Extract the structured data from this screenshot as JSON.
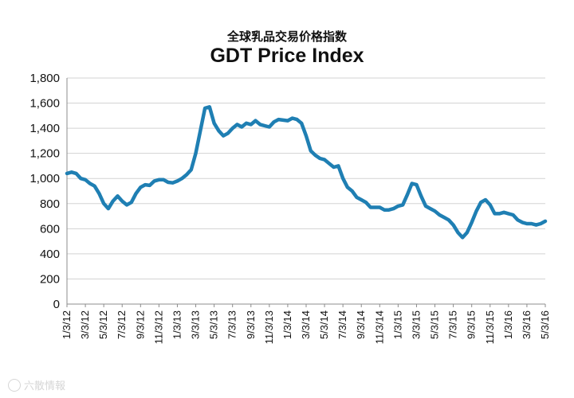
{
  "chart_data": {
    "type": "line",
    "subtitle": "全球乳品交易价格指数",
    "title": "GDT Price Index",
    "xlabel": "",
    "ylabel": "",
    "ylim": [
      0,
      1800
    ],
    "yticks": [
      0,
      200,
      400,
      600,
      800,
      1000,
      1200,
      1400,
      1600,
      1800
    ],
    "ytick_labels": [
      "0",
      "200",
      "400",
      "600",
      "800",
      "1,000",
      "1,200",
      "1,400",
      "1,600",
      "1,800"
    ],
    "xlim": [
      0,
      52
    ],
    "xticks": [
      {
        "x": 0,
        "label": "1/3/12"
      },
      {
        "x": 2,
        "label": "3/3/12"
      },
      {
        "x": 4,
        "label": "5/3/12"
      },
      {
        "x": 6,
        "label": "7/3/12"
      },
      {
        "x": 8,
        "label": "9/3/12"
      },
      {
        "x": 10,
        "label": "11/3/12"
      },
      {
        "x": 12,
        "label": "1/3/13"
      },
      {
        "x": 14,
        "label": "3/3/13"
      },
      {
        "x": 16,
        "label": "5/3/13"
      },
      {
        "x": 18,
        "label": "7/3/13"
      },
      {
        "x": 20,
        "label": "9/3/13"
      },
      {
        "x": 22,
        "label": "11/3/13"
      },
      {
        "x": 24,
        "label": "1/3/14"
      },
      {
        "x": 26,
        "label": "3/3/14"
      },
      {
        "x": 28,
        "label": "5/3/14"
      },
      {
        "x": 30,
        "label": "7/3/14"
      },
      {
        "x": 32,
        "label": "9/3/14"
      },
      {
        "x": 34,
        "label": "11/3/14"
      },
      {
        "x": 36,
        "label": "1/3/15"
      },
      {
        "x": 38,
        "label": "3/3/15"
      },
      {
        "x": 40,
        "label": "5/3/15"
      },
      {
        "x": 42,
        "label": "7/3/15"
      },
      {
        "x": 44,
        "label": "9/3/15"
      },
      {
        "x": 46,
        "label": "11/3/15"
      },
      {
        "x": 48,
        "label": "1/3/16"
      },
      {
        "x": 50,
        "label": "3/3/16"
      },
      {
        "x": 52,
        "label": "5/3/16"
      }
    ],
    "grid": true,
    "line_color": "#1f7fb3",
    "series": [
      {
        "name": "GDT Price Index",
        "x": [
          0,
          0.5,
          1,
          1.5,
          2,
          2.5,
          3,
          3.5,
          4,
          4.5,
          5,
          5.5,
          6,
          6.5,
          7,
          7.5,
          8,
          8.5,
          9,
          9.5,
          10,
          10.5,
          11,
          11.5,
          12,
          12.5,
          13,
          13.5,
          14,
          14.5,
          15,
          15.5,
          16,
          16.5,
          17,
          17.5,
          18,
          18.5,
          19,
          19.5,
          20,
          20.5,
          21,
          21.5,
          22,
          22.5,
          23,
          23.5,
          24,
          24.5,
          25,
          25.5,
          26,
          26.5,
          27,
          27.5,
          28,
          28.5,
          29,
          29.5,
          30,
          30.5,
          31,
          31.5,
          32,
          32.5,
          33,
          33.5,
          34,
          34.5,
          35,
          35.5,
          36,
          36.5,
          37,
          37.5,
          38,
          38.5,
          39,
          39.5,
          40,
          40.5,
          41,
          41.5,
          42,
          42.5,
          43,
          43.5,
          44,
          44.5,
          45,
          45.5,
          46,
          46.5,
          47,
          47.5,
          48,
          48.5,
          49,
          49.5,
          50,
          50.5,
          51,
          51.5,
          52
        ],
        "values": [
          1040,
          1050,
          1040,
          1000,
          990,
          960,
          940,
          880,
          800,
          760,
          820,
          860,
          820,
          790,
          810,
          880,
          930,
          950,
          945,
          980,
          990,
          990,
          970,
          965,
          980,
          1000,
          1030,
          1070,
          1200,
          1380,
          1560,
          1570,
          1440,
          1380,
          1340,
          1360,
          1400,
          1430,
          1410,
          1440,
          1430,
          1460,
          1430,
          1420,
          1410,
          1450,
          1470,
          1465,
          1460,
          1480,
          1470,
          1440,
          1340,
          1220,
          1185,
          1160,
          1150,
          1120,
          1090,
          1100,
          1000,
          930,
          900,
          850,
          830,
          810,
          770,
          770,
          770,
          750,
          750,
          760,
          780,
          790,
          870,
          960,
          950,
          860,
          780,
          760,
          740,
          710,
          690,
          670,
          630,
          570,
          530,
          570,
          650,
          740,
          810,
          830,
          790,
          720,
          720,
          730,
          720,
          710,
          670,
          650,
          640,
          640,
          630,
          640,
          660
        ]
      }
    ]
  },
  "watermark": {
    "text": "六散情報"
  }
}
